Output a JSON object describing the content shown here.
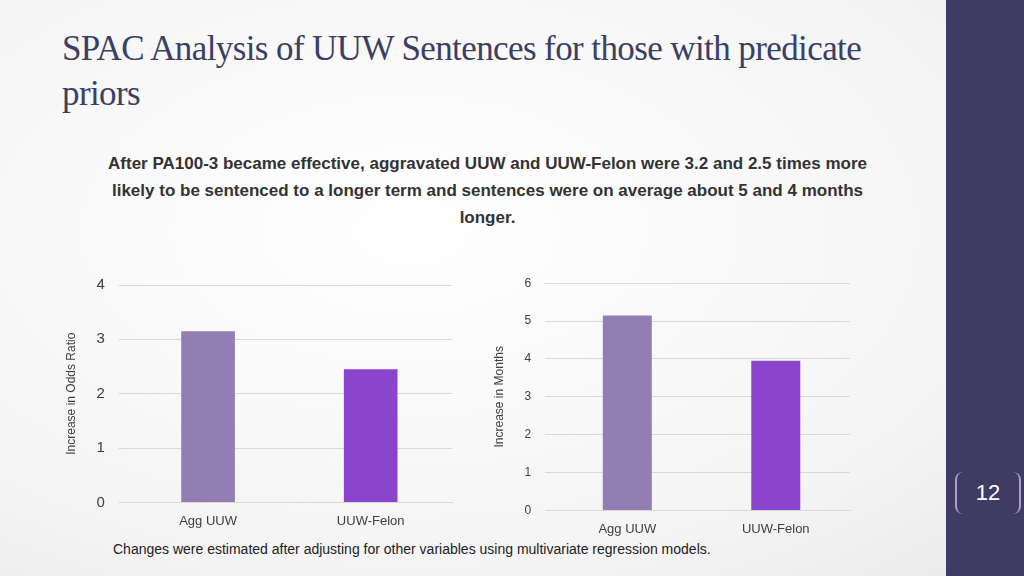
{
  "title": "SPAC Analysis of UUW Sentences for those with predicate priors",
  "subtitle": "After PA100-3 became effective, aggravated UUW and UUW-Felon were 3.2 and 2.5 times more likely to be sentenced to a longer term and sentences were on average about 5 and 4 months longer.",
  "footnote": "Changes were estimated after adjusting for other variables using multivariate regression models.",
  "page_number": "12",
  "chart_data": [
    {
      "type": "bar",
      "y_label": "Increase in Odds Ratio",
      "categories": [
        "Agg UUW",
        "UUW-Felon"
      ],
      "values": [
        3.15,
        2.45
      ],
      "colors": [
        "#937eb3",
        "#8a45cc"
      ],
      "ylim": [
        0,
        4
      ],
      "yticks": [
        0,
        1,
        2,
        3,
        4
      ],
      "grid": true
    },
    {
      "type": "bar",
      "y_label": "Increase in Months",
      "categories": [
        "Agg UUW",
        "UUW-Felon"
      ],
      "values": [
        5.15,
        3.95
      ],
      "colors": [
        "#937eb3",
        "#8a45cc"
      ],
      "ylim": [
        0,
        6
      ],
      "yticks": [
        0,
        1,
        2,
        3,
        4,
        5,
        6
      ],
      "grid": true
    }
  ]
}
